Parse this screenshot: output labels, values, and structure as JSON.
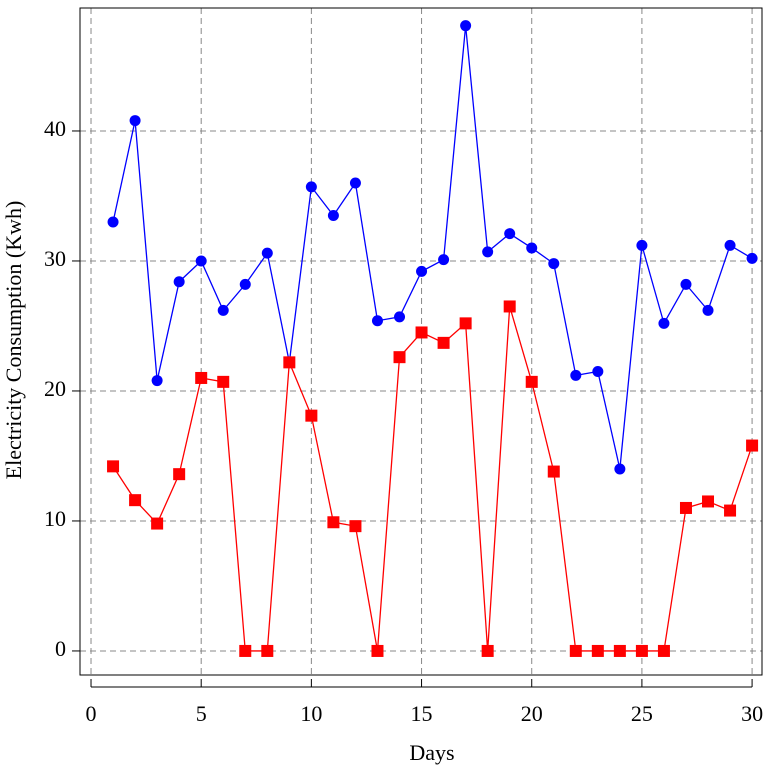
{
  "chart_data": {
    "type": "line",
    "x_label": "Days",
    "y_label": "Electricity Consumption (Kwh)",
    "x": [
      1,
      2,
      3,
      4,
      5,
      6,
      7,
      8,
      9,
      10,
      11,
      12,
      13,
      14,
      15,
      16,
      17,
      18,
      19,
      20,
      21,
      22,
      23,
      24,
      25,
      26,
      27,
      28,
      29,
      30
    ],
    "series": [
      {
        "color": "#0000ff",
        "marker": "circle",
        "values": [
          33.0,
          40.8,
          20.8,
          28.4,
          30.0,
          26.2,
          28.2,
          30.6,
          22.2,
          35.7,
          33.5,
          36.0,
          25.4,
          25.7,
          29.2,
          30.1,
          48.1,
          30.7,
          32.1,
          31.0,
          29.8,
          21.2,
          21.5,
          14.0,
          31.2,
          25.2,
          28.2,
          26.2,
          31.2,
          30.2
        ]
      },
      {
        "color": "#ff0000",
        "marker": "square",
        "values": [
          14.2,
          11.6,
          9.8,
          13.6,
          21.0,
          20.7,
          0,
          0,
          22.2,
          18.1,
          9.9,
          9.6,
          0,
          22.6,
          24.5,
          23.7,
          25.2,
          0,
          26.5,
          20.7,
          13.8,
          0,
          0,
          0,
          0,
          0,
          11.0,
          11.5,
          10.8,
          15.8
        ]
      }
    ],
    "xlim": [
      -0.5,
      30.45
    ],
    "xticks": [
      0,
      5,
      10,
      15,
      20,
      25,
      30
    ],
    "ylim": [
      -1.85,
      49.46
    ],
    "yticks": [
      0,
      10,
      20,
      30,
      40
    ],
    "grid": true
  }
}
